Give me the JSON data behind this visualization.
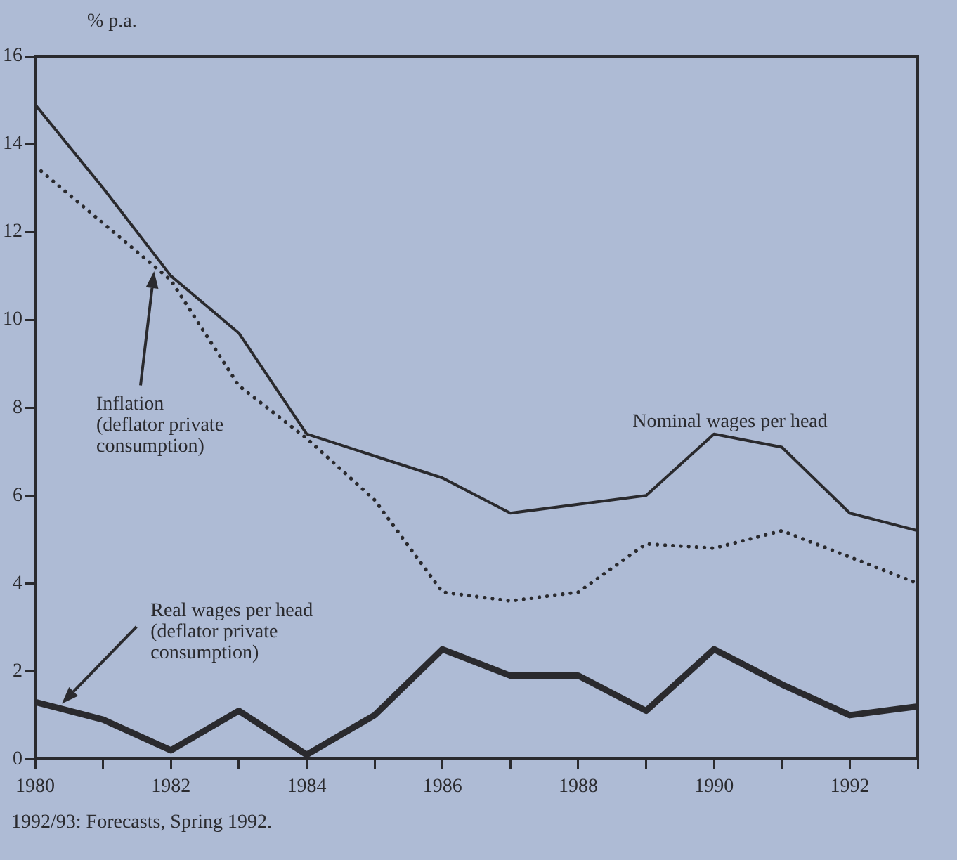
{
  "chart_data": {
    "type": "line",
    "ylabel": "% p.a.",
    "x": [
      1980,
      1981,
      1982,
      1983,
      1984,
      1985,
      1986,
      1987,
      1988,
      1989,
      1990,
      1991,
      1992,
      1993
    ],
    "series": [
      {
        "name": "Nominal wages per head",
        "color": "#2a2a2e",
        "line_style": "solid",
        "values": [
          14.9,
          13.0,
          11.0,
          9.7,
          7.4,
          6.9,
          6.4,
          5.6,
          5.8,
          6.0,
          7.4,
          7.1,
          5.6,
          5.2
        ]
      },
      {
        "name": "Inflation\n(deflator private\nconsumption)",
        "color": "#2a2a2e",
        "line_style": "dotted",
        "values": [
          13.5,
          12.2,
          10.9,
          8.5,
          7.3,
          5.9,
          3.8,
          3.6,
          3.8,
          4.9,
          4.8,
          5.2,
          4.6,
          4.0
        ]
      },
      {
        "name": "Real wages per head\n(deflator private\nconsumption)",
        "color": "#2a2a2e",
        "line_style": "solid",
        "values": [
          1.3,
          0.9,
          0.2,
          1.1,
          0.1,
          1.0,
          2.5,
          1.9,
          1.9,
          1.1,
          2.5,
          1.7,
          1.0,
          1.2
        ]
      }
    ],
    "xlim": [
      1980,
      1993
    ],
    "xticks": [
      1980,
      {
        "value": 1981,
        "label": null
      },
      1982,
      {
        "value": 1983,
        "label": null
      },
      1984,
      {
        "value": 1985,
        "label": null
      },
      1986,
      {
        "value": 1987,
        "label": null
      },
      1988,
      {
        "value": 1989,
        "label": null
      },
      1990,
      {
        "value": 1991,
        "label": null
      },
      1992,
      {
        "value": 1993,
        "label": null
      }
    ],
    "ylim": [
      0,
      16
    ],
    "yticks": [
      0,
      2,
      4,
      6,
      8,
      10,
      12,
      14,
      16
    ],
    "grid": false,
    "legend": false,
    "marker": "none",
    "annotations": [
      "1992/93: Forecasts, Spring 1992."
    ]
  }
}
